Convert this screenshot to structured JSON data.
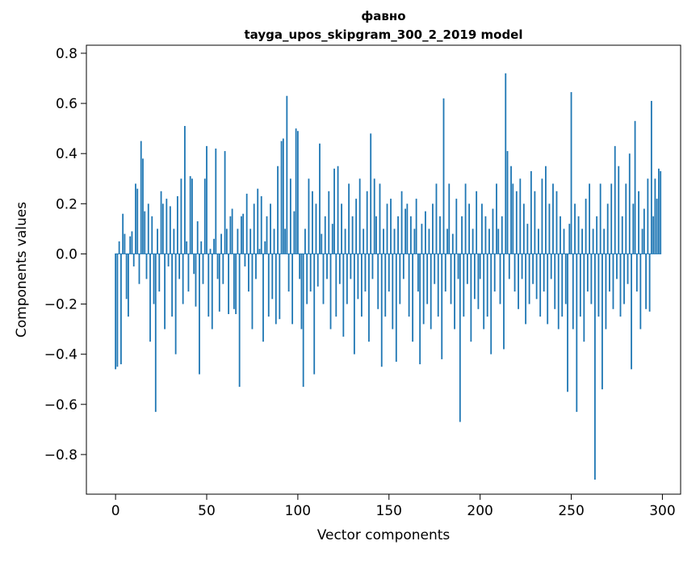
{
  "chart_data": {
    "type": "bar",
    "title_line1": "фавно",
    "title_line2": "tayga_upos_skipgram_300_2_2019 model",
    "xlabel": "Vector components",
    "ylabel": "Components values",
    "x_ticks": [
      0,
      50,
      100,
      150,
      200,
      250,
      300
    ],
    "y_ticks": [
      -0.8,
      -0.6,
      -0.4,
      -0.2,
      0.0,
      0.2,
      0.4,
      0.6,
      0.8
    ],
    "xlim": [
      -16,
      310
    ],
    "ylim": [
      -0.958,
      0.832
    ],
    "grid": false,
    "legend": "none",
    "bar_color": "#1f77b4",
    "n_components": 300,
    "values": [
      -0.46,
      -0.45,
      0.05,
      -0.44,
      0.16,
      0.08,
      -0.18,
      -0.25,
      0.07,
      0.09,
      -0.05,
      0.28,
      0.26,
      -0.12,
      0.45,
      0.38,
      0.17,
      -0.1,
      0.2,
      -0.35,
      0.15,
      -0.2,
      -0.63,
      0.1,
      -0.15,
      0.25,
      0.2,
      -0.3,
      0.22,
      -0.05,
      0.19,
      -0.25,
      0.1,
      -0.4,
      0.23,
      -0.1,
      0.3,
      -0.2,
      0.51,
      0.05,
      -0.15,
      0.31,
      0.3,
      -0.08,
      -0.21,
      0.13,
      -0.48,
      0.05,
      -0.12,
      0.3,
      0.43,
      -0.25,
      0.02,
      -0.3,
      0.06,
      0.42,
      -0.1,
      -0.23,
      0.08,
      -0.12,
      0.41,
      0.1,
      -0.24,
      0.15,
      0.18,
      -0.22,
      -0.24,
      0.1,
      -0.53,
      0.15,
      0.16,
      -0.05,
      0.24,
      -0.15,
      0.1,
      -0.3,
      0.2,
      -0.1,
      0.26,
      0.02,
      0.23,
      -0.35,
      0.05,
      0.15,
      -0.25,
      0.2,
      -0.18,
      0.1,
      -0.28,
      0.35,
      -0.26,
      0.45,
      0.46,
      0.1,
      0.63,
      -0.15,
      0.3,
      -0.28,
      0.17,
      0.5,
      0.49,
      -0.1,
      -0.3,
      -0.53,
      0.1,
      -0.2,
      0.3,
      -0.15,
      0.25,
      -0.48,
      0.2,
      -0.13,
      0.44,
      0.08,
      -0.2,
      0.15,
      -0.1,
      0.25,
      -0.3,
      0.12,
      0.34,
      -0.25,
      0.35,
      -0.12,
      0.2,
      -0.33,
      0.1,
      -0.2,
      0.28,
      -0.1,
      0.15,
      -0.4,
      0.22,
      -0.18,
      0.3,
      -0.25,
      0.1,
      -0.15,
      0.25,
      -0.35,
      0.48,
      -0.1,
      0.3,
      0.15,
      -0.22,
      0.28,
      -0.45,
      0.1,
      -0.25,
      0.2,
      -0.15,
      0.22,
      -0.3,
      0.1,
      -0.43,
      0.15,
      -0.2,
      0.25,
      -0.1,
      0.18,
      0.2,
      -0.25,
      0.15,
      -0.35,
      0.1,
      0.22,
      -0.15,
      -0.44,
      0.12,
      -0.28,
      0.17,
      -0.2,
      0.1,
      -0.3,
      0.2,
      -0.12,
      0.28,
      -0.25,
      0.15,
      -0.42,
      0.62,
      -0.15,
      0.1,
      0.28,
      -0.2,
      0.08,
      -0.3,
      0.22,
      -0.1,
      -0.67,
      0.15,
      -0.25,
      0.28,
      -0.12,
      0.2,
      -0.35,
      0.1,
      -0.18,
      0.25,
      -0.22,
      -0.1,
      0.2,
      -0.3,
      0.15,
      -0.25,
      0.1,
      -0.4,
      0.18,
      -0.15,
      0.28,
      0.1,
      -0.2,
      0.15,
      -0.38,
      0.72,
      0.41,
      -0.1,
      0.35,
      0.28,
      -0.15,
      0.25,
      -0.22,
      0.3,
      -0.1,
      0.2,
      -0.28,
      0.12,
      -0.2,
      0.33,
      -0.12,
      0.25,
      -0.18,
      0.1,
      -0.25,
      0.3,
      -0.15,
      0.35,
      -0.28,
      0.2,
      -0.1,
      0.28,
      -0.22,
      0.25,
      -0.3,
      0.15,
      -0.25,
      0.1,
      -0.2,
      -0.55,
      0.12,
      0.645,
      -0.3,
      0.2,
      -0.63,
      0.15,
      -0.25,
      0.1,
      -0.35,
      0.22,
      -0.15,
      0.28,
      -0.2,
      0.1,
      -0.9,
      0.15,
      -0.25,
      0.28,
      -0.54,
      0.1,
      -0.3,
      0.2,
      -0.15,
      0.28,
      -0.22,
      0.43,
      -0.1,
      0.35,
      -0.25,
      0.15,
      -0.2,
      0.28,
      -0.12,
      0.4,
      -0.46,
      0.2,
      0.53,
      -0.15,
      0.25,
      -0.3,
      0.1,
      0.18,
      -0.22,
      0.3,
      -0.23,
      0.61,
      0.15,
      0.3,
      0.22,
      0.34,
      0.33
    ]
  }
}
